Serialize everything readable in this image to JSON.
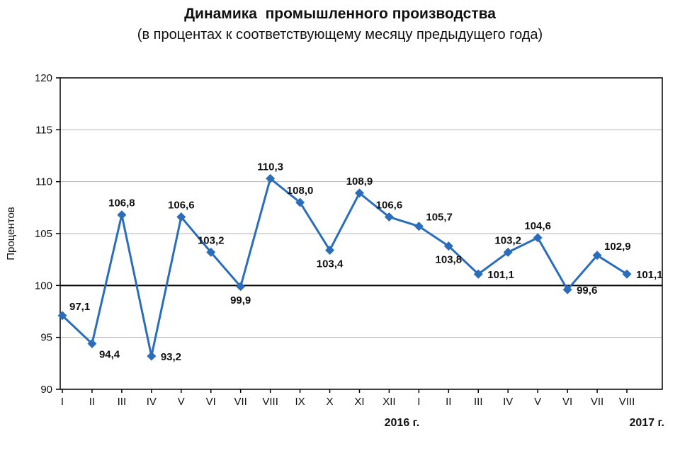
{
  "chart_data": {
    "type": "line",
    "title": "Динамика  промышленного производства",
    "subtitle": "(в процентах к соответствующему месяцу предыдущего года)",
    "ylabel": "Процентов",
    "ylim": [
      90,
      120
    ],
    "ytick_step": 5,
    "yticks": [
      90,
      95,
      100,
      105,
      110,
      115,
      120
    ],
    "reference_line": 100,
    "grid": "horizontal",
    "legend": "none",
    "categories": [
      "I",
      "II",
      "III",
      "IV",
      "V",
      "VI",
      "VII",
      "VIII",
      "IX",
      "X",
      "XI",
      "XII",
      "I",
      "II",
      "III",
      "IV",
      "V",
      "VI",
      "VII",
      "VIII"
    ],
    "values": [
      97.1,
      94.4,
      106.8,
      93.2,
      106.6,
      103.2,
      99.9,
      110.3,
      108.0,
      103.4,
      108.9,
      106.6,
      105.7,
      103.8,
      101.1,
      103.2,
      104.6,
      99.6,
      102.9,
      101.1
    ],
    "point_labels": [
      "97,1",
      "94,4",
      "106,8",
      "93,2",
      "106,6",
      "103,2",
      "99,9",
      "110,3",
      "108,0",
      "103,4",
      "108,9",
      "106,6",
      "105,7",
      "103,8",
      "101,1",
      "103,2",
      "104,6",
      "99,6",
      "102,9",
      "101,1"
    ],
    "label_placements": [
      "above-right",
      "below-right",
      "above",
      "right",
      "above",
      "above",
      "below",
      "above",
      "above",
      "below",
      "above",
      "above",
      "above-right",
      "below",
      "right",
      "above",
      "above",
      "right",
      "above-right",
      "right"
    ],
    "x_year_labels": [
      {
        "text": "2016 г.",
        "tick_index": 11
      },
      {
        "text": "2017 г.",
        "tick_index": 19
      }
    ],
    "line_color": "#2a6ebb",
    "marker": "diamond",
    "marker_color": "#2a6ebb",
    "label_color": "#111111",
    "axis_color": "#000000",
    "grid_color": "#b3b3b3"
  }
}
